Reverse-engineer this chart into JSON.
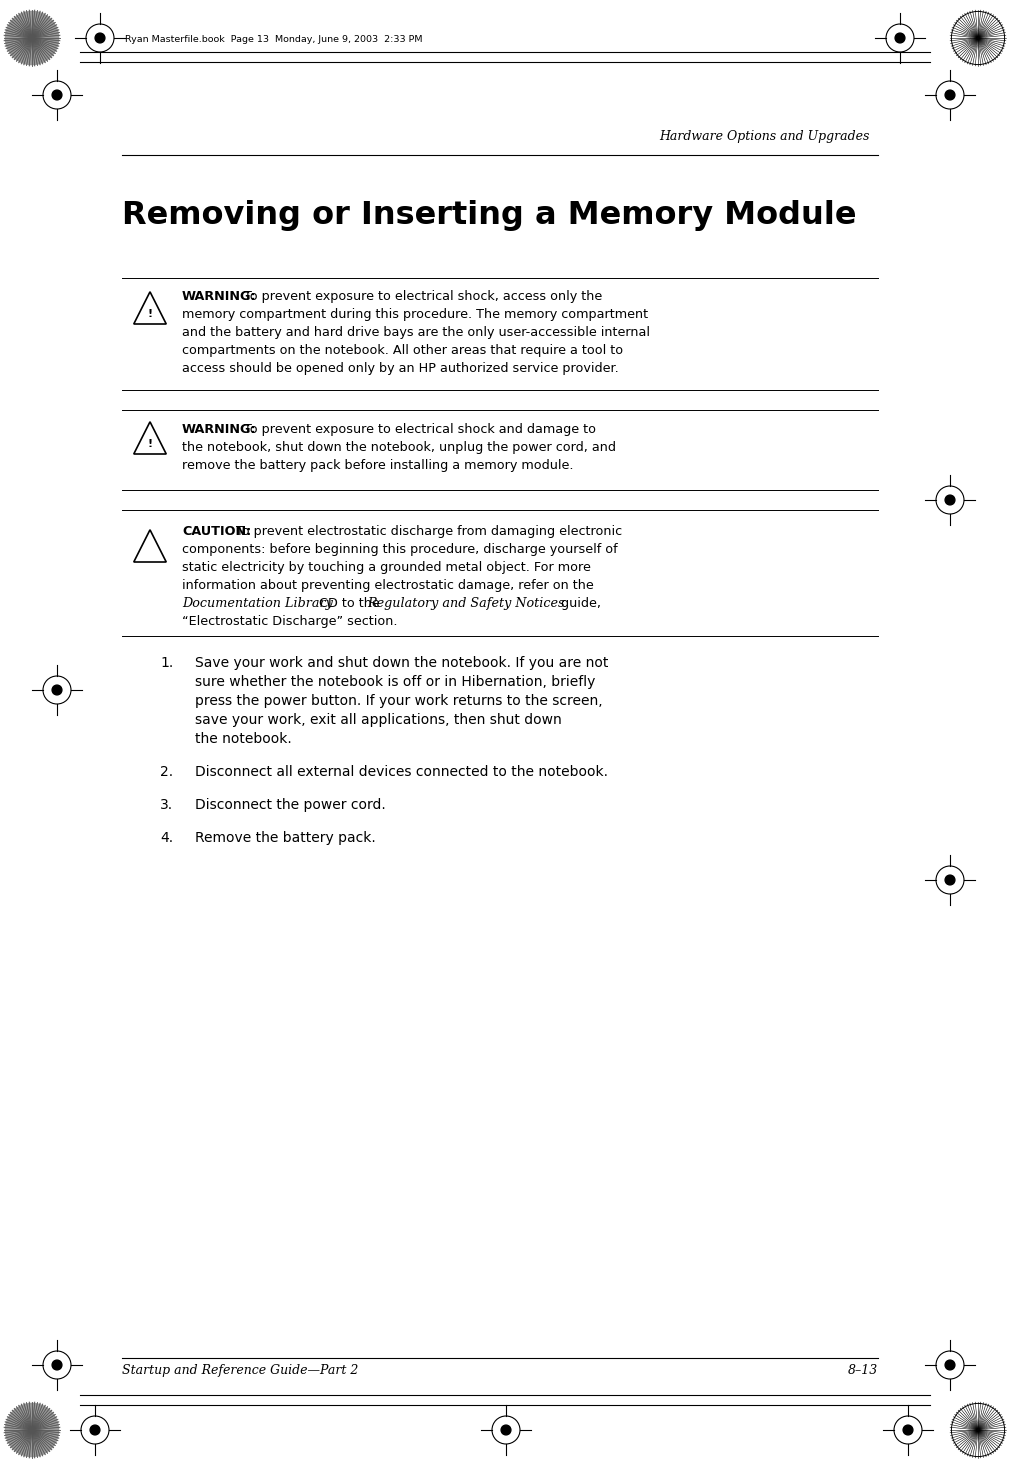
{
  "bg_color": "#ffffff",
  "header_right_text": "Hardware Options and Upgrades",
  "header_file_text": "Ryan Masterfile.book  Page 13  Monday, June 9, 2003  2:33 PM",
  "footer_left_text": "Startup and Reference Guide—Part 2",
  "footer_right_text": "8–13",
  "title": "Removing or Inserting a Memory Module",
  "warning1_label": "WARNING:",
  "warning1_line1": "To prevent exposure to electrical shock, access only the",
  "warning1_line2": "memory compartment during this procedure. The memory compartment",
  "warning1_line3": "and the battery and hard drive bays are the only user-accessible internal",
  "warning1_line4": "compartments on the notebook. All other areas that require a tool to",
  "warning1_line5": "access should be opened only by an HP authorized service provider.",
  "warning2_label": "WARNING:",
  "warning2_line1": "To prevent exposure to electrical shock and damage to",
  "warning2_line2": "the notebook, shut down the notebook, unplug the power cord, and",
  "warning2_line3": "remove the battery pack before installing a memory module.",
  "caution_label": "CAUTION:",
  "caution_line1": "To prevent electrostatic discharge from damaging electronic",
  "caution_line2": "components: before beginning this procedure, discharge yourself of",
  "caution_line3": "static electricity by touching a grounded metal object. For more",
  "caution_line4": "information about preventing electrostatic damage, refer on the",
  "caution_line5a": "Documentation Library",
  "caution_line5b": " CD to the ",
  "caution_line5c": "Regulatory and Safety Notices",
  "caution_line5d": " guide,",
  "caution_line6": "“Electrostatic Discharge” section.",
  "step1_num": "1.",
  "step1_lines": [
    "Save your work and shut down the notebook. If you are not",
    "sure whether the notebook is off or in Hibernation, briefly",
    "press the power button. If your work returns to the screen,",
    "save your work, exit all applications, then shut down",
    "the notebook."
  ],
  "step2_num": "2.",
  "step2_text": "Disconnect all external devices connected to the notebook.",
  "step3_num": "3.",
  "step3_text": "Disconnect the power cord.",
  "step4_num": "4.",
  "step4_text": "Remove the battery pack.",
  "text_color": "#000000"
}
